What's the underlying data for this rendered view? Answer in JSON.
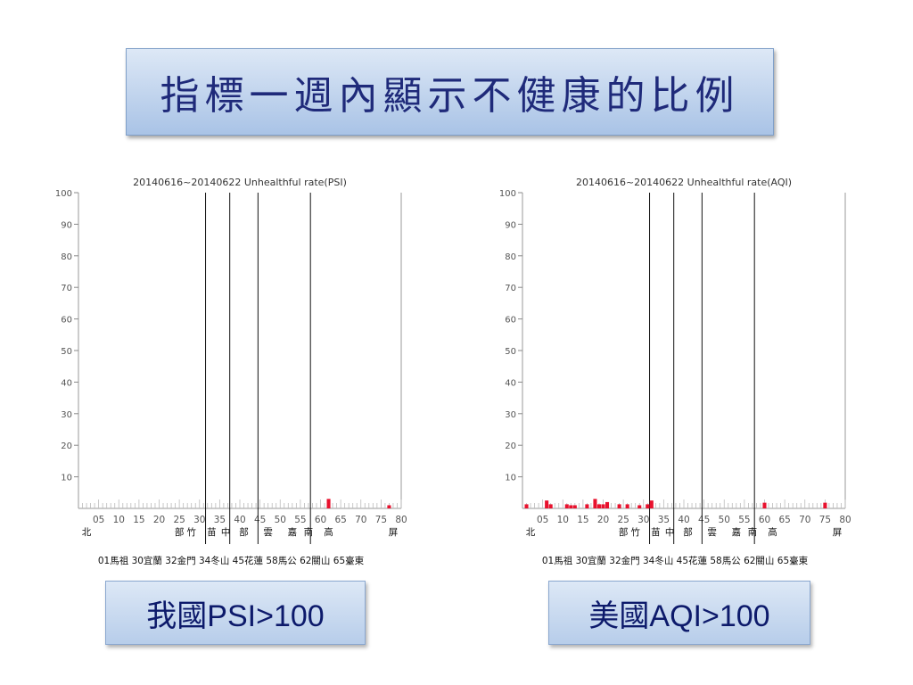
{
  "slide": {
    "title": "指標一週內顯示不健康的比例",
    "label_left": "我國PSI>100",
    "label_right": "美國AQI>100"
  },
  "chart_data": [
    {
      "type": "bar",
      "title": "20140616~20140622 Unhealthful rate(PSI)",
      "ylim": [
        0,
        100
      ],
      "yticks": [
        10,
        20,
        30,
        40,
        50,
        60,
        70,
        80,
        90,
        100
      ],
      "xlim": [
        0,
        80
      ],
      "xticks": [
        "05",
        "10",
        "15",
        "20",
        "25",
        "30",
        "35",
        "40",
        "45",
        "50",
        "55",
        "60",
        "65",
        "70",
        "75",
        "80"
      ],
      "xtick_values": [
        5,
        10,
        15,
        20,
        25,
        30,
        35,
        40,
        45,
        50,
        55,
        60,
        65,
        70,
        75,
        80
      ],
      "region_labels": [
        {
          "text": "北",
          "x": 2
        },
        {
          "text": "部",
          "x": 25
        },
        {
          "text": "竹",
          "x": 28
        },
        {
          "text": "苗",
          "x": 33
        },
        {
          "text": "中",
          "x": 36.5
        },
        {
          "text": "部",
          "x": 41
        },
        {
          "text": "雲",
          "x": 47
        },
        {
          "text": "嘉",
          "x": 53
        },
        {
          "text": "南",
          "x": 57
        },
        {
          "text": "高",
          "x": 62
        },
        {
          "text": "屏",
          "x": 78
        }
      ],
      "dividers": [
        31.5,
        37.5,
        44.5,
        57.5
      ],
      "station_legend": "01馬祖  30宜蘭  32金門  34冬山  45花蓮  58馬公  62關山  65臺東",
      "bars": [
        {
          "x": 62,
          "value": 3
        },
        {
          "x": 77,
          "value": 1
        }
      ]
    },
    {
      "type": "bar",
      "title": "20140616~20140622 Unhealthful rate(AQI)",
      "ylim": [
        0,
        100
      ],
      "yticks": [
        10,
        20,
        30,
        40,
        50,
        60,
        70,
        80,
        90,
        100
      ],
      "xlim": [
        0,
        80
      ],
      "xticks": [
        "05",
        "10",
        "15",
        "20",
        "25",
        "30",
        "35",
        "40",
        "45",
        "50",
        "55",
        "60",
        "65",
        "70",
        "75",
        "80"
      ],
      "xtick_values": [
        5,
        10,
        15,
        20,
        25,
        30,
        35,
        40,
        45,
        50,
        55,
        60,
        65,
        70,
        75,
        80
      ],
      "region_labels": [
        {
          "text": "北",
          "x": 2
        },
        {
          "text": "部",
          "x": 25
        },
        {
          "text": "竹",
          "x": 28
        },
        {
          "text": "苗",
          "x": 33
        },
        {
          "text": "中",
          "x": 36.5
        },
        {
          "text": "部",
          "x": 41
        },
        {
          "text": "雲",
          "x": 47
        },
        {
          "text": "嘉",
          "x": 53
        },
        {
          "text": "南",
          "x": 57
        },
        {
          "text": "高",
          "x": 62
        },
        {
          "text": "屏",
          "x": 78
        }
      ],
      "dividers": [
        31.5,
        37.5,
        44.5,
        57.5
      ],
      "station_legend": "01馬祖  30宜蘭  32金門  34冬山  45花蓮  58馬公  62關山  65臺東",
      "bars": [
        {
          "x": 1,
          "value": 1.3
        },
        {
          "x": 6,
          "value": 2.5
        },
        {
          "x": 7,
          "value": 1.3
        },
        {
          "x": 11,
          "value": 1.3
        },
        {
          "x": 12,
          "value": 1
        },
        {
          "x": 13,
          "value": 1
        },
        {
          "x": 16,
          "value": 1.3
        },
        {
          "x": 18,
          "value": 3
        },
        {
          "x": 19,
          "value": 1.3
        },
        {
          "x": 20,
          "value": 1.3
        },
        {
          "x": 21,
          "value": 2
        },
        {
          "x": 24,
          "value": 1.3
        },
        {
          "x": 26,
          "value": 1.3
        },
        {
          "x": 29,
          "value": 1
        },
        {
          "x": 31,
          "value": 1.3
        },
        {
          "x": 32,
          "value": 2.5
        },
        {
          "x": 60,
          "value": 1.8
        },
        {
          "x": 75,
          "value": 1.8
        }
      ]
    }
  ],
  "colors": {
    "bar": "#e8112d",
    "title_text": "#1f2a7a",
    "label_text": "#0d1a6b"
  }
}
